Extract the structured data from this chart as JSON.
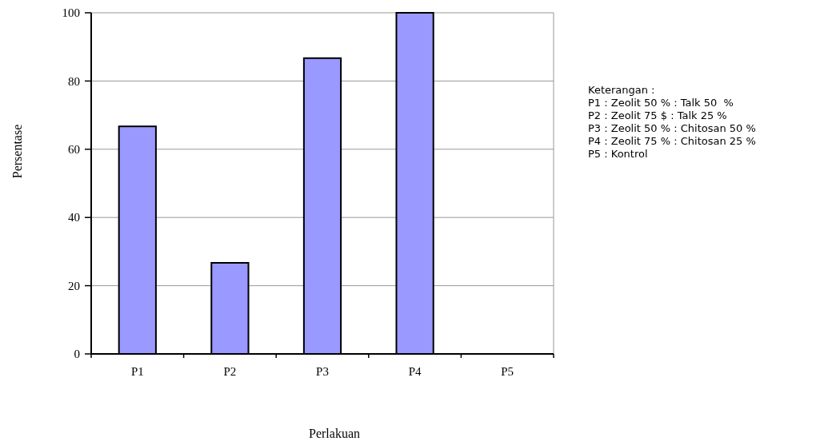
{
  "chart_data": {
    "type": "bar",
    "xlabel": "Perlakuan",
    "ylabel": "Persentase",
    "categories": [
      "P1",
      "P2",
      "P3",
      "P4",
      "P5"
    ],
    "values": [
      66.7,
      26.7,
      86.7,
      100,
      0
    ],
    "color": "#9999ff",
    "ylim": [
      0,
      100
    ],
    "yticks": [
      0,
      20,
      40,
      60,
      80,
      100
    ],
    "grid": "y",
    "annotations": [
      "Keterangan :",
      "P1 : Zeolit 50 % : Talk 50  %",
      "P2 : Zeolit 75 $ : Talk 25 %",
      "P3 : Zeolit 50 % : Chitosan 50 %",
      "P4 : Zeolit 75 % : Chitosan 25 %",
      "P5 : Kontrol"
    ]
  }
}
